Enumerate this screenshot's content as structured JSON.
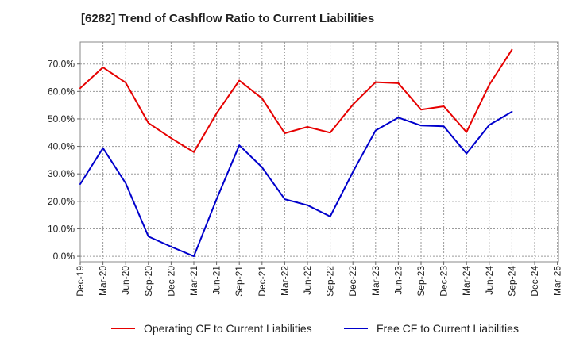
{
  "chart_data": {
    "type": "line",
    "title": "[6282]  Trend of Cashflow Ratio to Current Liabilities",
    "xlabel": "",
    "ylabel": "",
    "ylim": [
      -2,
      78
    ],
    "y_ticks": [
      "0.0%",
      "10.0%",
      "20.0%",
      "30.0%",
      "40.0%",
      "50.0%",
      "60.0%",
      "70.0%"
    ],
    "y_tick_values": [
      0,
      10,
      20,
      30,
      40,
      50,
      60,
      70
    ],
    "x_tick_labels": [
      "Dec-19",
      "Mar-20",
      "Jun-20",
      "Sep-20",
      "Dec-20",
      "Mar-21",
      "Jun-21",
      "Sep-21",
      "Dec-21",
      "Mar-22",
      "Jun-22",
      "Sep-22",
      "Dec-22",
      "Mar-23",
      "Jun-23",
      "Sep-23",
      "Dec-23",
      "Mar-24",
      "Jun-24",
      "Sep-24",
      "Dec-24",
      "Mar-25"
    ],
    "grid": true,
    "legend_position": "bottom",
    "series": [
      {
        "name": "Operating CF to Current Liabilities",
        "color": "#e60000",
        "values": [
          61.2,
          68.8,
          63.2,
          48.5,
          43.0,
          37.9,
          52.0,
          64.0,
          57.5,
          44.8,
          47.1,
          45.0,
          55.2,
          63.4,
          63.0,
          53.4,
          54.6,
          45.2,
          62.4,
          75.2,
          null,
          null
        ]
      },
      {
        "name": "Free CF to Current Liabilities",
        "color": "#0000cc",
        "values": [
          26.3,
          39.4,
          26.6,
          7.2,
          3.5,
          0.0,
          20.8,
          40.4,
          32.4,
          20.8,
          18.6,
          14.5,
          30.7,
          45.8,
          50.5,
          47.6,
          47.3,
          37.4,
          47.8,
          52.6,
          null,
          null
        ]
      }
    ]
  }
}
